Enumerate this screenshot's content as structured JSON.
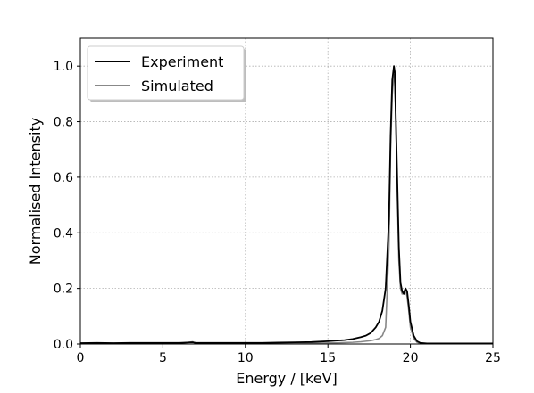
{
  "chart_data": {
    "type": "line",
    "xlabel": "Energy / [keV]",
    "ylabel": "Normalised Intensity",
    "xlim": [
      0,
      25
    ],
    "ylim": [
      0,
      1.1
    ],
    "xticks": [
      0,
      5,
      10,
      15,
      20,
      25
    ],
    "xtick_labels": [
      "0",
      "5",
      "10",
      "15",
      "20",
      "25"
    ],
    "yticks": [
      0.0,
      0.2,
      0.4,
      0.6,
      0.8,
      1.0
    ],
    "ytick_labels": [
      "0.0",
      "0.2",
      "0.4",
      "0.6",
      "0.8",
      "1.0"
    ],
    "grid": true,
    "legend_position": "top-left",
    "series": [
      {
        "name": "Experiment",
        "color": "#000000",
        "x": [
          0,
          1,
          2,
          3,
          4,
          5,
          6,
          6.8,
          7,
          8,
          9,
          10,
          11,
          12,
          13,
          14,
          15,
          15.5,
          16,
          16.5,
          17,
          17.3,
          17.6,
          17.9,
          18.1,
          18.3,
          18.5,
          18.7,
          18.8,
          18.9,
          19.0,
          19.05,
          19.1,
          19.2,
          19.3,
          19.4,
          19.5,
          19.6,
          19.7,
          19.8,
          19.9,
          20.0,
          20.2,
          20.4,
          20.6,
          21,
          22,
          23,
          24,
          25
        ],
        "y": [
          0.003,
          0.004,
          0.003,
          0.004,
          0.004,
          0.004,
          0.004,
          0.006,
          0.004,
          0.004,
          0.004,
          0.004,
          0.004,
          0.005,
          0.006,
          0.007,
          0.01,
          0.012,
          0.014,
          0.018,
          0.025,
          0.03,
          0.04,
          0.06,
          0.08,
          0.12,
          0.2,
          0.45,
          0.75,
          0.95,
          1.0,
          0.98,
          0.85,
          0.6,
          0.35,
          0.22,
          0.19,
          0.18,
          0.2,
          0.19,
          0.14,
          0.08,
          0.03,
          0.01,
          0.004,
          0.002,
          0.002,
          0.002,
          0.002,
          0.002
        ]
      },
      {
        "name": "Simulated",
        "color": "#888888",
        "x": [
          0,
          1,
          2,
          3,
          4,
          5,
          6,
          6.8,
          7,
          8,
          9,
          10,
          11,
          12,
          13,
          14,
          15,
          15.5,
          16,
          16.5,
          17,
          17.3,
          17.6,
          17.9,
          18.1,
          18.3,
          18.5,
          18.7,
          18.8,
          18.9,
          19.0,
          19.05,
          19.1,
          19.2,
          19.3,
          19.4,
          19.5,
          19.6,
          19.7,
          19.8,
          19.9,
          20.0,
          20.2,
          20.4,
          20.6,
          21,
          22,
          23,
          24,
          25
        ],
        "y": [
          0.002,
          0.002,
          0.002,
          0.002,
          0.002,
          0.002,
          0.002,
          0.008,
          0.002,
          0.002,
          0.002,
          0.002,
          0.002,
          0.002,
          0.002,
          0.003,
          0.004,
          0.004,
          0.005,
          0.006,
          0.008,
          0.01,
          0.012,
          0.016,
          0.02,
          0.03,
          0.06,
          0.35,
          0.7,
          0.9,
          0.97,
          0.95,
          0.85,
          0.55,
          0.3,
          0.2,
          0.18,
          0.19,
          0.2,
          0.17,
          0.12,
          0.06,
          0.02,
          0.006,
          0.002,
          0.001,
          0.001,
          0.001,
          0.001,
          0.001
        ]
      }
    ]
  }
}
